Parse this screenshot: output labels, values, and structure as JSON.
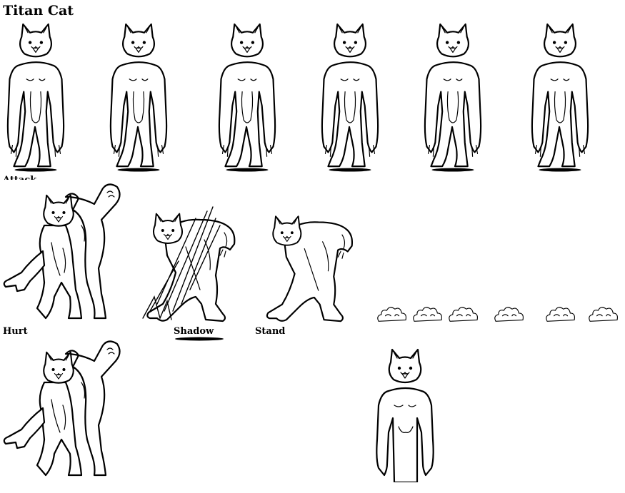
{
  "sheet": {
    "title": "Titan Cat",
    "labels": {
      "attack": "Attack",
      "hurt": "Hurt",
      "shadow": "Shadow",
      "stand": "Stand"
    }
  },
  "colors": {
    "background": "#ffffff",
    "ink": "#000000"
  },
  "rows": {
    "walk_frames": 6,
    "attack_frames": 3,
    "dust_frames": 6
  }
}
